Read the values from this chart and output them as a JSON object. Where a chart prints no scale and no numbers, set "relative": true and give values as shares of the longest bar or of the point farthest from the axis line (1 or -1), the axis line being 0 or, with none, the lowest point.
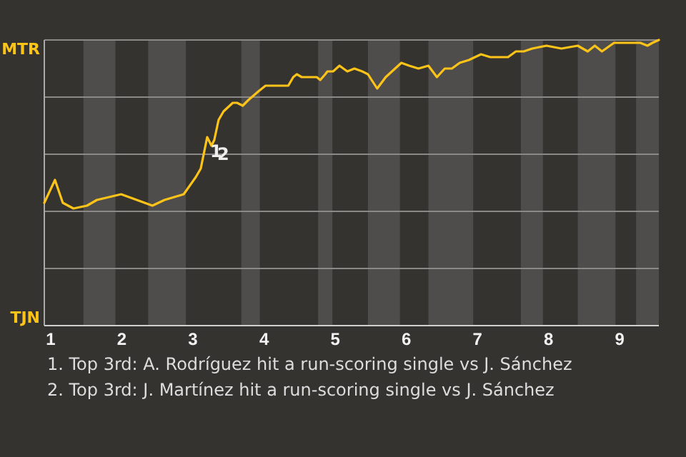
{
  "chart_data": {
    "type": "line",
    "relative": true,
    "x": [
      0.91,
      1.06,
      1.17,
      1.32,
      1.51,
      1.65,
      1.99,
      2.43,
      2.6,
      2.87,
      3.04,
      3.11,
      3.2,
      3.26,
      3.3,
      3.36,
      3.43,
      3.56,
      3.62,
      3.7,
      3.78,
      3.92,
      4.02,
      4.34,
      4.41,
      4.46,
      4.53,
      4.74,
      4.79,
      4.86,
      4.89,
      4.97,
      5.06,
      5.17,
      5.27,
      5.38,
      5.46,
      5.59,
      5.71,
      5.93,
      6.04,
      6.17,
      6.31,
      6.43,
      6.54,
      6.64,
      6.75,
      6.88,
      7.05,
      7.18,
      7.31,
      7.43,
      7.54,
      7.65,
      7.77,
      7.97,
      8.18,
      8.41,
      8.55,
      8.65,
      8.75,
      8.92,
      8.96,
      9.29,
      9.39,
      9.46,
      9.55
    ],
    "series": [
      {
        "color": "#fcc419",
        "values": [
          0.43,
          0.51,
          0.43,
          0.41,
          0.42,
          0.44,
          0.46,
          0.42,
          0.44,
          0.46,
          0.52,
          0.55,
          0.66,
          0.63,
          0.65,
          0.72,
          0.75,
          0.78,
          0.78,
          0.77,
          0.79,
          0.82,
          0.84,
          0.84,
          0.87,
          0.88,
          0.87,
          0.87,
          0.86,
          0.88,
          0.89,
          0.89,
          0.91,
          0.89,
          0.9,
          0.89,
          0.88,
          0.83,
          0.87,
          0.92,
          0.91,
          0.9,
          0.91,
          0.87,
          0.9,
          0.9,
          0.92,
          0.93,
          0.95,
          0.94,
          0.94,
          0.94,
          0.96,
          0.96,
          0.97,
          0.98,
          0.97,
          0.98,
          0.96,
          0.98,
          0.96,
          0.99,
          0.99,
          0.99,
          0.98,
          0.99,
          1.0
        ]
      }
    ],
    "xlim": [
      0.91,
      9.55
    ],
    "xticks": [
      1,
      2,
      3,
      4,
      5,
      6,
      7,
      8,
      9
    ],
    "grid": "y",
    "bands": [
      {
        "axis": "x",
        "from": 1.46,
        "to": 1.91,
        "color": "#4e4d4b"
      },
      {
        "axis": "x",
        "from": 2.37,
        "to": 2.9,
        "color": "#4e4d4b"
      },
      {
        "axis": "x",
        "from": 3.68,
        "to": 3.94,
        "color": "#4e4d4b"
      },
      {
        "axis": "x",
        "from": 4.76,
        "to": 4.96,
        "color": "#4e4d4b"
      },
      {
        "axis": "x",
        "from": 5.46,
        "to": 5.91,
        "color": "#4e4d4b"
      },
      {
        "axis": "x",
        "from": 6.31,
        "to": 6.94,
        "color": "#4e4d4b"
      },
      {
        "axis": "x",
        "from": 7.61,
        "to": 7.92,
        "color": "#4e4d4b"
      },
      {
        "axis": "x",
        "from": 8.41,
        "to": 8.94,
        "color": "#4e4d4b"
      },
      {
        "axis": "x",
        "from": 9.23,
        "to": 9.55,
        "color": "#4e4d4b"
      }
    ],
    "annotations": [
      "MTR",
      "TJN",
      {
        "text": "1",
        "x": 3.2,
        "y": 0.66
      },
      {
        "text": "2",
        "x": 3.3,
        "y": 0.65
      },
      "1. Top 3rd: A. Rodríguez hit a run-scoring single vs J. Sánchez",
      "2. Top 3rd: J. Martínez hit a run-scoring single vs J. Sánchez"
    ]
  }
}
